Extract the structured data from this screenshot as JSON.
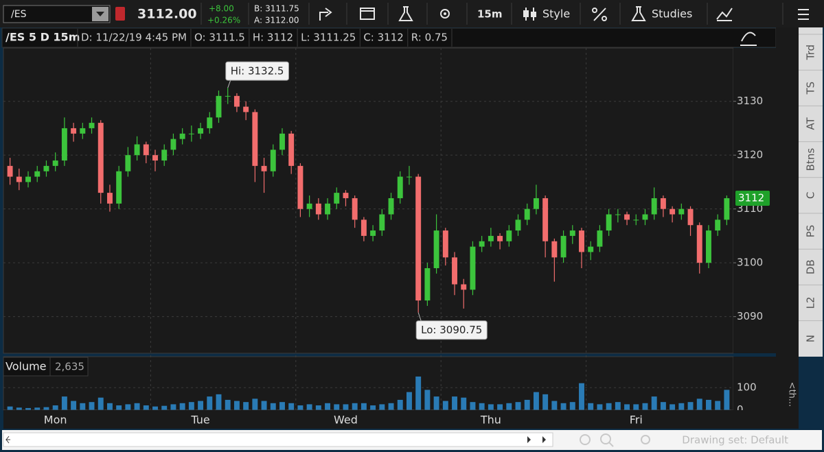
{
  "toolbar": {
    "symbol": "/ES",
    "last": "3112.00",
    "change": "+8.00",
    "change_pct": "+0.26%",
    "bid": "B: 3111.75",
    "ask": "A: 3112.00",
    "interval": "15m",
    "style": "Style",
    "studies": "Studies"
  },
  "header": {
    "title": "/ES 5 D 15m",
    "items": [
      "D: 11/22/19 4:45 PM",
      "O: 3111.5",
      "H: 3112",
      "L: 3111.25",
      "C: 3112",
      "R: 0.75"
    ]
  },
  "chart_data": [
    {
      "type": "candlestick",
      "categories": [
        null,
        null,
        null,
        null,
        null,
        "Mon",
        null,
        null,
        null,
        null,
        null,
        null,
        null,
        null,
        null,
        null,
        null,
        null,
        null,
        null,
        null,
        "Tue",
        null,
        null,
        null,
        null,
        null,
        null,
        null,
        null,
        null,
        null,
        null,
        null,
        null,
        null,
        null,
        "Wed",
        null,
        null,
        null,
        null,
        null,
        null,
        null,
        null,
        null,
        null,
        null,
        null,
        null,
        null,
        null,
        "Thu",
        null,
        null,
        null,
        null,
        null,
        null,
        null,
        null,
        null,
        null,
        null,
        null,
        null,
        null,
        null,
        "Fri",
        null,
        null,
        null,
        null,
        null,
        null,
        null,
        null,
        null,
        null
      ],
      "open": [
        3118,
        3116,
        3115,
        3116,
        3117,
        3118,
        3119,
        3125,
        3124,
        3125,
        3126,
        3113,
        3111,
        3117,
        3120,
        3122,
        3120,
        3119,
        3121,
        3123,
        3124,
        3124,
        3125,
        3127,
        3131,
        3131,
        3129,
        3128,
        3118,
        3117,
        3121,
        3124,
        3118,
        3110,
        3111,
        3109,
        3111,
        3113,
        3112,
        3108,
        3105,
        3106,
        3109,
        3112,
        3116,
        3116,
        3093,
        3099,
        3106,
        3101,
        3096,
        3095,
        3103,
        3104,
        3105,
        3104,
        3106,
        3108,
        3110,
        3112,
        3104,
        3101,
        3105,
        3106,
        3102,
        3103,
        3106,
        3109,
        3109,
        3108,
        3108,
        3109,
        3112,
        3110,
        3109,
        3110,
        3107,
        3100,
        3106,
        3108
      ],
      "high": [
        3119.5,
        3117.5,
        3117,
        3118,
        3119,
        3120.5,
        3127,
        3126,
        3126,
        3127,
        3126.5,
        3114.5,
        3118,
        3121.5,
        3123.5,
        3122.5,
        3121,
        3122,
        3124,
        3125,
        3125.5,
        3126,
        3128,
        3132,
        3132.5,
        3131.5,
        3130,
        3128.5,
        3119.5,
        3122,
        3125,
        3124.5,
        3118.5,
        3112.5,
        3112,
        3112,
        3114,
        3113.5,
        3112.5,
        3108.5,
        3107,
        3110,
        3113,
        3117,
        3118,
        3116.5,
        3100,
        3109,
        3106.5,
        3102,
        3097,
        3104,
        3105,
        3106.5,
        3105.5,
        3107,
        3109,
        3111,
        3114.5,
        3112.5,
        3104.5,
        3106,
        3107,
        3106.5,
        3104,
        3107,
        3110,
        3110,
        3109.5,
        3109,
        3110,
        3114,
        3112.5,
        3110.5,
        3111,
        3110.5,
        3107.5,
        3107,
        3109,
        3112.5
      ],
      "low": [
        3114.5,
        3113.5,
        3114,
        3115,
        3116,
        3117,
        3118,
        3122.5,
        3123,
        3124,
        3111,
        3109.5,
        3110,
        3116,
        3119,
        3118.5,
        3117,
        3118,
        3120,
        3122,
        3122.5,
        3123,
        3124,
        3126,
        3129.5,
        3128,
        3126.5,
        3115,
        3113,
        3116,
        3120,
        3116.5,
        3108.5,
        3108.5,
        3108,
        3108,
        3110,
        3110.5,
        3106.5,
        3104,
        3104,
        3105,
        3108,
        3111,
        3114.5,
        3090.75,
        3092,
        3098,
        3099.5,
        3094,
        3091.5,
        3094,
        3102,
        3103,
        3102.5,
        3103,
        3105,
        3107,
        3109,
        3101,
        3096.5,
        3100,
        3103.5,
        3099,
        3100.5,
        3102,
        3105,
        3107.5,
        3107,
        3107,
        3107,
        3108,
        3108.5,
        3107.5,
        3108,
        3105,
        3098,
        3099,
        3105,
        3107
      ],
      "close": [
        3116,
        3115,
        3116,
        3117,
        3118,
        3119,
        3125,
        3124,
        3125,
        3126,
        3113,
        3111,
        3117,
        3120,
        3122,
        3120,
        3119,
        3121,
        3123,
        3124,
        3124,
        3125,
        3127,
        3131,
        3131,
        3129,
        3128,
        3118,
        3117,
        3121,
        3124,
        3118,
        3110,
        3111,
        3109,
        3111,
        3113,
        3112,
        3108,
        3105,
        3106,
        3109,
        3112,
        3116,
        3116,
        3093,
        3099,
        3106,
        3101,
        3096,
        3095,
        3103,
        3104,
        3105,
        3104,
        3106,
        3108,
        3110,
        3112,
        3104,
        3101,
        3105,
        3106,
        3102,
        3103,
        3106,
        3109,
        3109,
        3108,
        3108,
        3109,
        3112,
        3110,
        3109,
        3110,
        3107,
        3100,
        3106,
        3108,
        3112
      ],
      "up_color": "#3cc43c",
      "down_color": "#f26d6d",
      "ylim": [
        3083.2,
        3139.9
      ],
      "yticks": [
        3090,
        3100,
        3110,
        3120,
        3130
      ],
      "grid": true,
      "annotations": [
        "Hi: 3132.5",
        "Lo: 3090.75"
      ]
    },
    {
      "type": "bar",
      "title": "Volume",
      "subtitle": "2,635",
      "values": [
        15,
        10,
        8,
        10,
        12,
        20,
        60,
        40,
        30,
        35,
        55,
        30,
        20,
        25,
        30,
        20,
        15,
        18,
        25,
        30,
        35,
        40,
        60,
        70,
        45,
        40,
        35,
        50,
        40,
        30,
        35,
        30,
        20,
        25,
        20,
        30,
        25,
        25,
        30,
        30,
        20,
        25,
        30,
        45,
        80,
        150,
        90,
        60,
        40,
        60,
        55,
        35,
        30,
        25,
        25,
        30,
        35,
        45,
        80,
        70,
        40,
        30,
        35,
        120,
        30,
        25,
        30,
        35,
        25,
        25,
        30,
        60,
        35,
        25,
        30,
        35,
        50,
        45,
        40,
        90
      ],
      "color": "#2a7bb5",
      "ylim": [
        0,
        153
      ],
      "yticks": [
        0,
        100
      ]
    }
  ],
  "side_tabs": [
    "Trd",
    "TS",
    "AT",
    "Btns",
    "C",
    "PS",
    "DB",
    "L2",
    "N"
  ],
  "side_note": "<th...",
  "footer": {
    "drawing_set": "Drawing set: Default"
  }
}
